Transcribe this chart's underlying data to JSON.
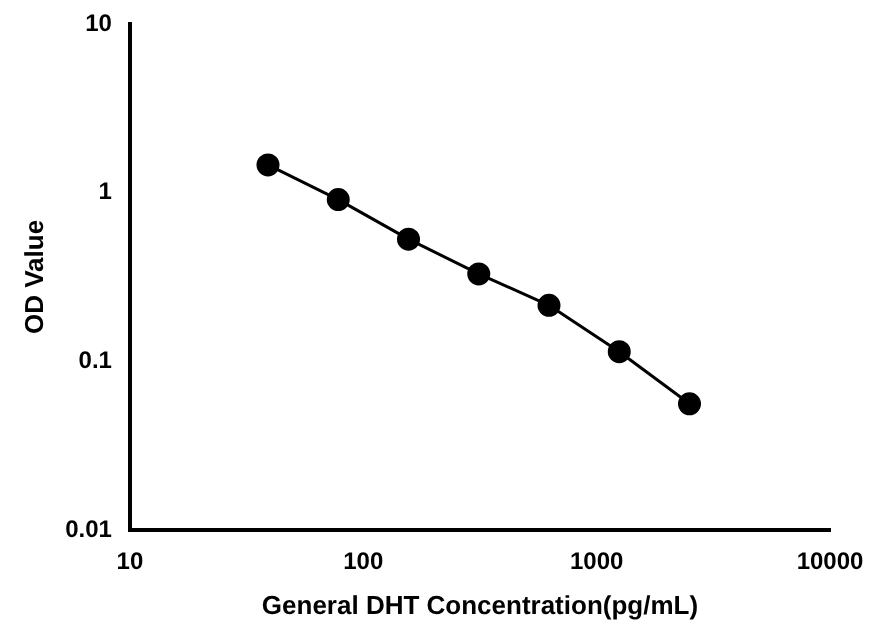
{
  "chart_data": {
    "type": "line",
    "xlabel": "General DHT Concentration(pg/mL)",
    "ylabel": "OD Value",
    "x": [
      39.06,
      78.13,
      156.25,
      312.5,
      625,
      1250,
      2500
    ],
    "series": [
      {
        "color": "#000000",
        "values": [
          1.46,
          0.91,
          0.53,
          0.33,
          0.215,
          0.114,
          0.056
        ]
      }
    ],
    "log": "xy",
    "xlim": [
      10,
      10000
    ],
    "xticks": [
      10,
      100,
      1000,
      10000
    ],
    "ylim": [
      0.01,
      10
    ],
    "yticks": [
      0.01,
      0.1,
      1,
      10
    ],
    "grid": false,
    "legend": false,
    "marker": "circle",
    "line_style": "solid"
  }
}
